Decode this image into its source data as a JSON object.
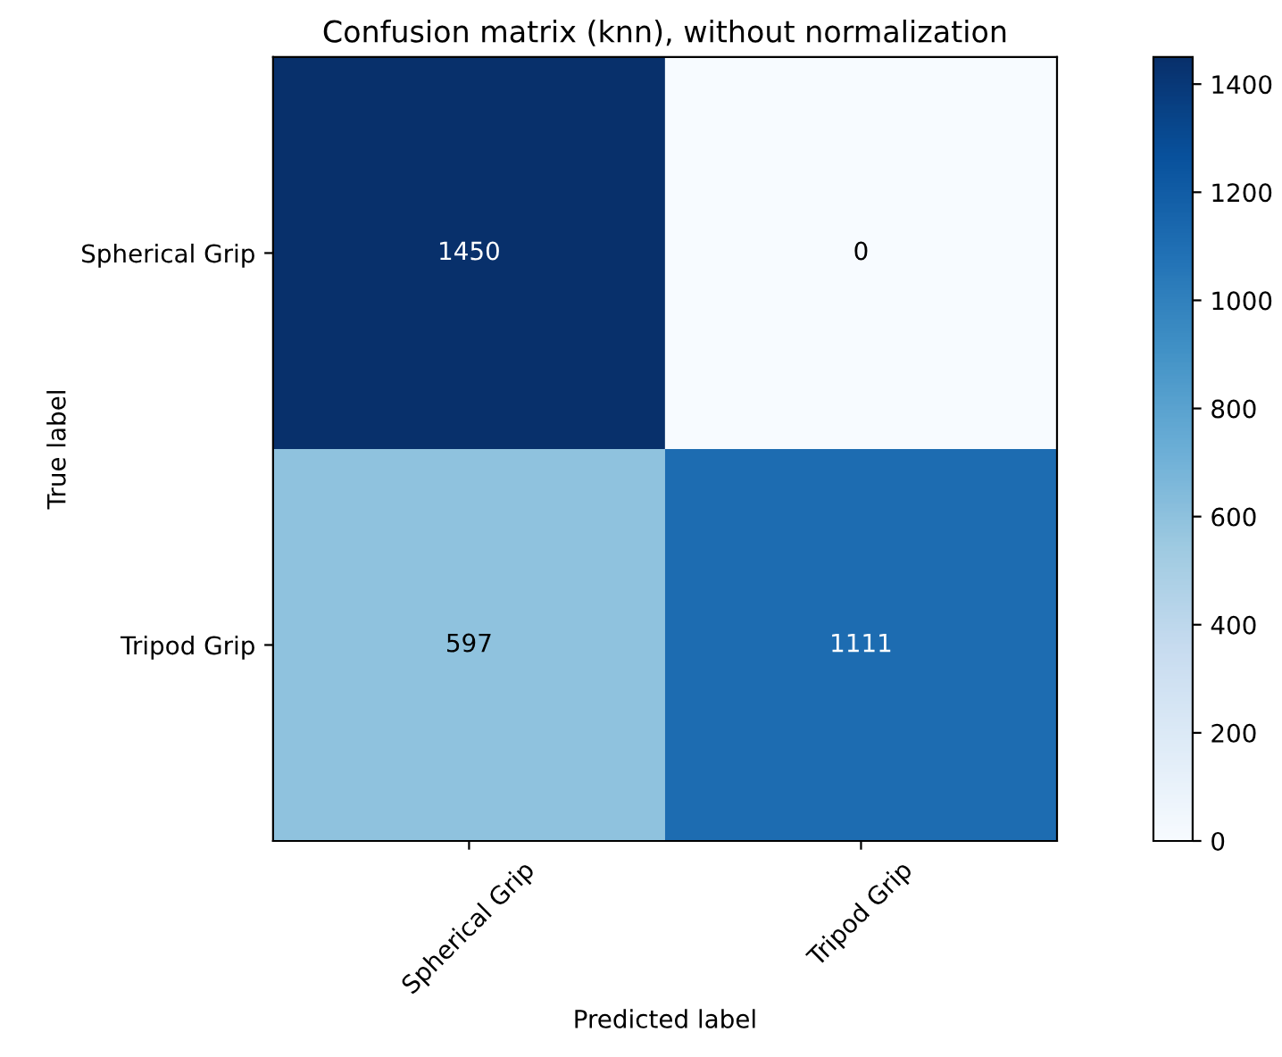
{
  "chart_data": {
    "type": "heatmap",
    "title": "Confusion matrix (knn), without normalization",
    "xlabel": "Predicted label",
    "ylabel": "True label",
    "categories": [
      "Spherical Grip",
      "Tripod Grip"
    ],
    "y_categories": [
      "Spherical Grip",
      "Tripod Grip"
    ],
    "cells": [
      [
        1450,
        0
      ],
      [
        597,
        1111
      ]
    ],
    "clim": [
      0,
      1450
    ],
    "cticks": [
      0,
      200,
      400,
      600,
      800,
      1000,
      1200,
      1400
    ],
    "data_labels": true
  }
}
